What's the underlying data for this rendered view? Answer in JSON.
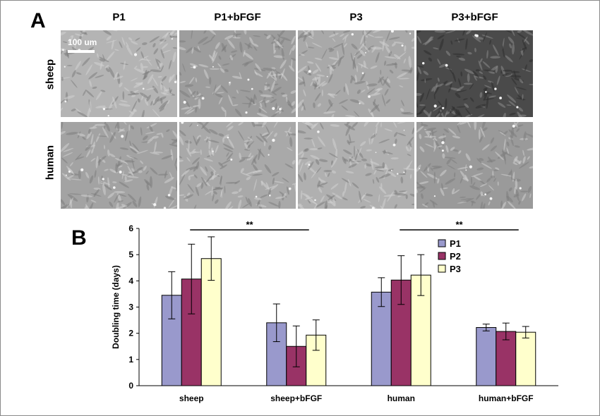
{
  "panel_a": {
    "letter": "A",
    "columns": [
      "P1",
      "P1+bFGF",
      "P3",
      "P3+bFGF"
    ],
    "rows": [
      "sheep",
      "human"
    ],
    "scale_bar": "100 um",
    "image_tones": [
      [
        "#b4b4b4",
        "#9d9d9d",
        "#a9a9a9",
        "#4a4a4a"
      ],
      [
        "#a3a3a3",
        "#a9a9a9",
        "#b0b0b0",
        "#9a9a9a"
      ]
    ]
  },
  "panel_b": {
    "letter": "B"
  },
  "chart_data": {
    "type": "bar",
    "title": "",
    "xlabel": "",
    "ylabel": "Doubling time (days)",
    "ylim": [
      0,
      6
    ],
    "yticks": [
      "0",
      "1",
      "2",
      "3",
      "4",
      "5",
      "6"
    ],
    "categories": [
      "sheep",
      "sheep+bFGF",
      "human",
      "human+bFGF"
    ],
    "series": [
      {
        "name": "P1",
        "color": "#9999cc",
        "values": [
          3.45,
          2.4,
          3.57,
          2.22
        ],
        "errors": [
          0.9,
          0.72,
          0.55,
          0.13
        ]
      },
      {
        "name": "P2",
        "color": "#993366",
        "values": [
          4.07,
          1.5,
          4.03,
          2.07
        ],
        "errors": [
          1.33,
          0.78,
          0.93,
          0.32
        ]
      },
      {
        "name": "P3",
        "color": "#ffffcc",
        "values": [
          4.85,
          1.93,
          4.22,
          2.04
        ],
        "errors": [
          0.83,
          0.58,
          0.78,
          0.22
        ]
      }
    ],
    "legend_position": "top-right",
    "significance": [
      {
        "label": "**",
        "from": "sheep",
        "to": "sheep+bFGF"
      },
      {
        "label": "**",
        "from": "human",
        "to": "human+bFGF"
      }
    ]
  }
}
